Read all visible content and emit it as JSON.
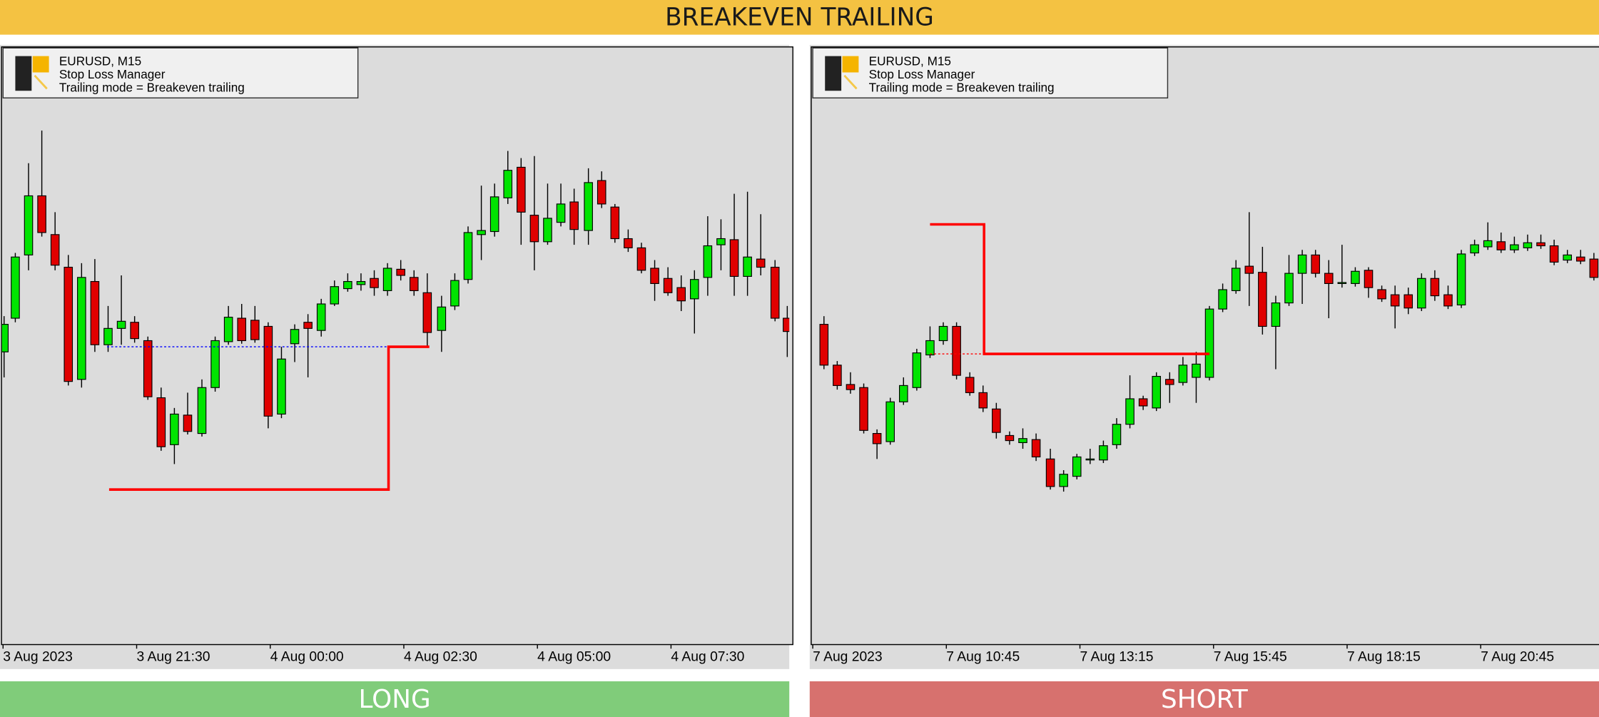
{
  "header": {
    "title": "BREAKEVEN TRAILING"
  },
  "panels": [
    {
      "info": [
        "EURUSD, M15",
        "Stop Loss Manager",
        "Trailing mode = Breakeven trailing"
      ],
      "time_labels": [
        "3 Aug 2023",
        "3 Aug 21:30",
        "4 Aug 00:00",
        "4 Aug 02:30",
        "4 Aug 05:00",
        "4 Aug 07:30"
      ],
      "footer": "LONG"
    },
    {
      "info": [
        "EURUSD, M15",
        "Stop Loss Manager",
        "Trailing mode = Breakeven trailing"
      ],
      "time_labels": [
        "7 Aug 2023",
        "7 Aug 10:45",
        "7 Aug 13:15",
        "7 Aug 15:45",
        "7 Aug 18:15",
        "7 Aug 20:45"
      ],
      "footer": "SHORT"
    }
  ]
}
